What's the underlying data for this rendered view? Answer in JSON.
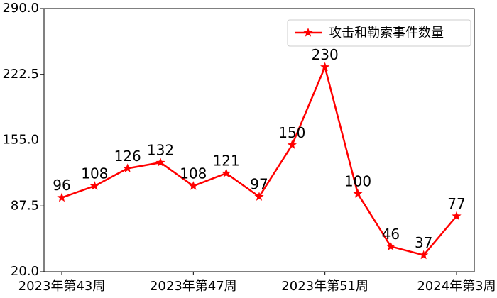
{
  "chart_data": {
    "type": "line",
    "categories": [
      "2023年第43周",
      null,
      null,
      null,
      "2023年第47周",
      null,
      null,
      null,
      "2023年第51周",
      null,
      null,
      null,
      "2024年第3周"
    ],
    "series": [
      {
        "name": "攻击和勒索事件数量",
        "color": "#ff0000",
        "values": [
          96,
          108,
          126,
          132,
          108,
          121,
          97,
          150,
          230,
          100,
          46,
          37,
          77
        ]
      }
    ],
    "ylim": [
      20,
      290
    ],
    "yticks": [
      {
        "value": 20,
        "label": "20.0"
      },
      87.5,
      {
        "value": 155,
        "label": "155.0"
      },
      222.5,
      {
        "value": 290,
        "label": "290.0"
      }
    ],
    "legend": "upper right"
  }
}
